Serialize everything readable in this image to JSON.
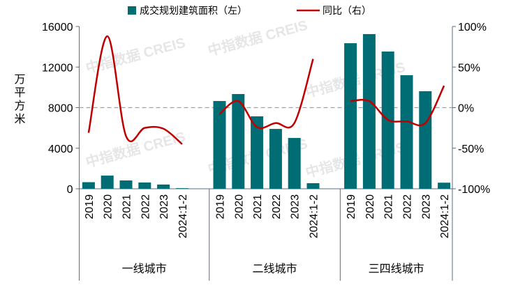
{
  "chart_data": {
    "type": "bar+line",
    "title": "",
    "legend": {
      "position": "top",
      "entries": [
        "成交规划建筑面积（左）",
        "同比（右）"
      ]
    },
    "ylabel_left": "万平方米",
    "ylim_left": [
      0,
      16000
    ],
    "yticks_left": [
      "0",
      "4000",
      "8000",
      "12000",
      "16000"
    ],
    "ylim_right": [
      -100,
      100
    ],
    "yticks_right": [
      "-100%",
      "-50%",
      "0%",
      "50%",
      "100%"
    ],
    "reference_line": 0,
    "categories": [
      "2019",
      "2020",
      "2021",
      "2022",
      "2023",
      "2024:1-2"
    ],
    "groups": [
      {
        "name": "一线城市",
        "area": [
          650,
          1300,
          820,
          620,
          420,
          60
        ],
        "yoy": [
          -31,
          88,
          -35,
          -25,
          -26,
          -45
        ]
      },
      {
        "name": "二线城市",
        "area": [
          8650,
          9340,
          7140,
          5900,
          5010,
          550
        ],
        "yoy": [
          -8,
          8,
          -24,
          -19,
          -19,
          60
        ]
      },
      {
        "name": "三四线城市",
        "area": [
          14350,
          15250,
          13530,
          11200,
          9620,
          600
        ],
        "yoy": [
          8,
          8,
          -15,
          -17,
          -19,
          27
        ]
      }
    ],
    "colors": {
      "bar": "#006C74",
      "line": "#C00000",
      "axis": "#5B6B80",
      "ref": "#A0A0A0"
    }
  },
  "watermark": "中指数据 CREIS"
}
